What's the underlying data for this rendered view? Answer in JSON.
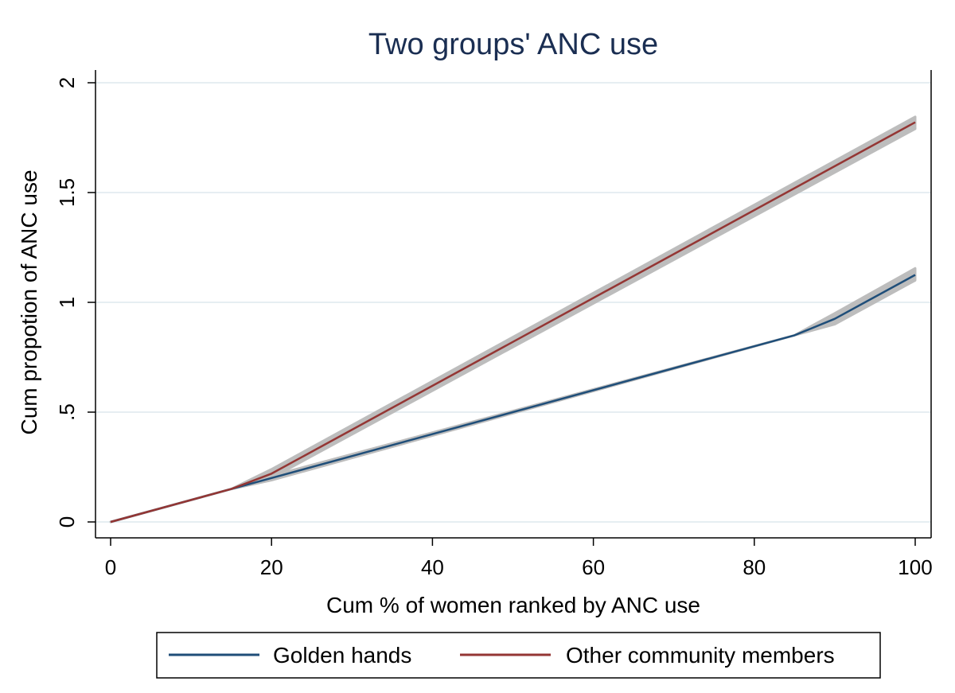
{
  "chart_data": {
    "type": "line",
    "title": "Two groups' ANC use",
    "xlabel": "Cum % of women ranked by ANC use",
    "ylabel": "Cum propotion of ANC use",
    "xlim": [
      0,
      100
    ],
    "ylim": [
      0,
      2
    ],
    "x_ticks": [
      0,
      20,
      40,
      60,
      80,
      100
    ],
    "x_tick_labels": [
      "0",
      "20",
      "40",
      "60",
      "80",
      "100"
    ],
    "y_ticks": [
      0,
      0.5,
      1,
      1.5,
      2
    ],
    "y_tick_labels": [
      "0",
      ".5",
      "1",
      "1.5",
      "2"
    ],
    "grid": true,
    "legend_position": "bottom",
    "series": [
      {
        "name": "Golden hands",
        "color": "#1f4e79",
        "x": [
          0,
          15,
          20,
          85,
          90,
          100
        ],
        "y": [
          0,
          0.15,
          0.2,
          0.85,
          0.925,
          1.125
        ],
        "ci_lower": [
          0,
          0.15,
          0.19,
          0.85,
          0.9,
          1.1
        ],
        "ci_upper": [
          0,
          0.15,
          0.21,
          0.85,
          0.95,
          1.155
        ]
      },
      {
        "name": "Other community members",
        "color": "#943634",
        "x": [
          0,
          15,
          20,
          100
        ],
        "y": [
          0,
          0.15,
          0.22,
          1.82
        ],
        "ci_lower": [
          0,
          0.15,
          0.2,
          1.79
        ],
        "ci_upper": [
          0,
          0.15,
          0.24,
          1.845
        ]
      }
    ],
    "ci_color": "#bdbdbd"
  }
}
